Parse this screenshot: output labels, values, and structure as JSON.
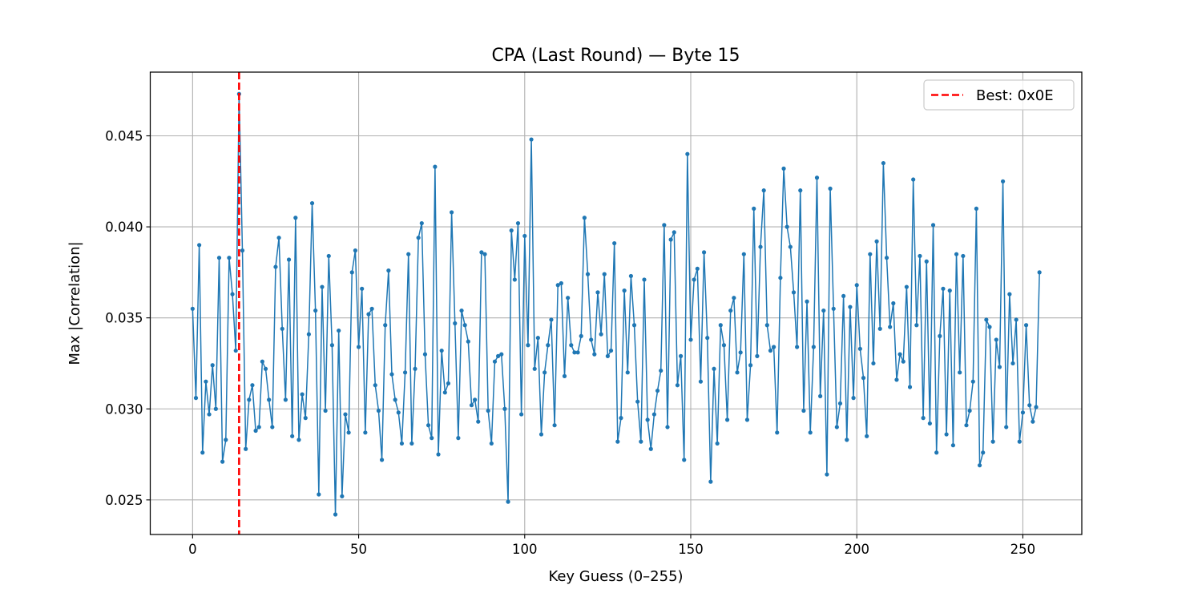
{
  "chart_data": {
    "type": "line",
    "title": "CPA (Last Round) — Byte 15",
    "xlabel": "Key Guess (0–255)",
    "ylabel": "Max |Correlation|",
    "xlim": [
      -12.75,
      267.75
    ],
    "ylim": [
      0.0231,
      0.0485
    ],
    "xticks": [
      0,
      50,
      100,
      150,
      200,
      250
    ],
    "yticks": [
      0.025,
      0.03,
      0.035,
      0.04,
      0.045
    ],
    "xtick_labels": [
      "0",
      "50",
      "100",
      "150",
      "200",
      "250"
    ],
    "ytick_labels": [
      "0.025",
      "0.030",
      "0.035",
      "0.040",
      "0.045"
    ],
    "grid": true,
    "legend_position": "top-right",
    "series": [
      {
        "color": "#1f77b4",
        "marker": "circle",
        "values": [
          0.0355,
          0.0306,
          0.039,
          0.0276,
          0.0315,
          0.0297,
          0.0324,
          0.03,
          0.0383,
          0.0271,
          0.0283,
          0.0383,
          0.0363,
          0.0332,
          0.0473,
          0.0387,
          0.0278,
          0.0305,
          0.0313,
          0.0288,
          0.029,
          0.0326,
          0.0322,
          0.0305,
          0.029,
          0.0378,
          0.0394,
          0.0344,
          0.0305,
          0.0382,
          0.0285,
          0.0405,
          0.0283,
          0.0308,
          0.0295,
          0.0341,
          0.0413,
          0.0354,
          0.0253,
          0.0367,
          0.0299,
          0.0384,
          0.0335,
          0.0242,
          0.0343,
          0.0252,
          0.0297,
          0.0287,
          0.0375,
          0.0387,
          0.0334,
          0.0366,
          0.0287,
          0.0352,
          0.0355,
          0.0313,
          0.0299,
          0.0272,
          0.0346,
          0.0376,
          0.0319,
          0.0305,
          0.0298,
          0.0281,
          0.032,
          0.0385,
          0.0281,
          0.0322,
          0.0394,
          0.0402,
          0.033,
          0.0291,
          0.0284,
          0.0433,
          0.0275,
          0.0332,
          0.0309,
          0.0314,
          0.0408,
          0.0347,
          0.0284,
          0.0354,
          0.0346,
          0.0337,
          0.0302,
          0.0305,
          0.0293,
          0.0386,
          0.0385,
          0.0299,
          0.0281,
          0.0326,
          0.0329,
          0.033,
          0.03,
          0.0249,
          0.0398,
          0.0371,
          0.0402,
          0.0297,
          0.0395,
          0.0335,
          0.0448,
          0.0322,
          0.0339,
          0.0286,
          0.032,
          0.0335,
          0.0349,
          0.0291,
          0.0368,
          0.0369,
          0.0318,
          0.0361,
          0.0335,
          0.0331,
          0.0331,
          0.034,
          0.0405,
          0.0374,
          0.0338,
          0.033,
          0.0364,
          0.0341,
          0.0374,
          0.0329,
          0.0332,
          0.0391,
          0.0282,
          0.0295,
          0.0365,
          0.032,
          0.0373,
          0.0346,
          0.0304,
          0.0282,
          0.0371,
          0.0294,
          0.0278,
          0.0297,
          0.031,
          0.0321,
          0.0401,
          0.029,
          0.0393,
          0.0397,
          0.0313,
          0.0329,
          0.0272,
          0.044,
          0.0338,
          0.0371,
          0.0377,
          0.0315,
          0.0386,
          0.0339,
          0.026,
          0.0322,
          0.0281,
          0.0346,
          0.0335,
          0.0294,
          0.0354,
          0.0361,
          0.032,
          0.0331,
          0.0385,
          0.0294,
          0.0324,
          0.041,
          0.0329,
          0.0389,
          0.042,
          0.0346,
          0.0332,
          0.0334,
          0.0287,
          0.0372,
          0.0432,
          0.04,
          0.0389,
          0.0364,
          0.0334,
          0.042,
          0.0299,
          0.0359,
          0.0287,
          0.0334,
          0.0427,
          0.0307,
          0.0354,
          0.0264,
          0.0421,
          0.0355,
          0.029,
          0.0303,
          0.0362,
          0.0283,
          0.0356,
          0.0306,
          0.0368,
          0.0333,
          0.0317,
          0.0285,
          0.0385,
          0.0325,
          0.0392,
          0.0344,
          0.0435,
          0.0383,
          0.0345,
          0.0358,
          0.0316,
          0.033,
          0.0326,
          0.0367,
          0.0312,
          0.0426,
          0.0346,
          0.0384,
          0.0295,
          0.0381,
          0.0292,
          0.0401,
          0.0276,
          0.034,
          0.0366,
          0.0286,
          0.0365,
          0.028,
          0.0385,
          0.032,
          0.0384,
          0.0291,
          0.0299,
          0.0315,
          0.041,
          0.0269,
          0.0276,
          0.0349,
          0.0345,
          0.0282,
          0.0338,
          0.0323,
          0.0425,
          0.029,
          0.0363,
          0.0325,
          0.0349,
          0.0282,
          0.0298,
          0.0346,
          0.0302,
          0.0293,
          0.0301,
          0.0375
        ]
      }
    ],
    "best_line": {
      "x": 14,
      "color": "#ff0000",
      "style": "dashed",
      "label": "Best: 0x0E"
    }
  }
}
